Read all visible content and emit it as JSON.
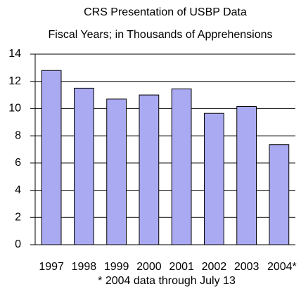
{
  "chart_data": {
    "type": "bar",
    "title": "CRS Presentation of USBP Data",
    "subtitle": "Fiscal Years; in Thousands of Apprehensions",
    "categories": [
      "1997",
      "1998",
      "1999",
      "2000",
      "2001",
      "2002",
      "2003",
      "2004*"
    ],
    "values": [
      12.8,
      11.5,
      10.7,
      11.0,
      11.45,
      9.65,
      10.15,
      7.35
    ],
    "color": "#aaaaf2",
    "ylim": [
      0,
      14
    ],
    "yticks": [
      0,
      2,
      4,
      6,
      8,
      10,
      12,
      14
    ],
    "grid": true,
    "footnote": "* 2004 data through July 13"
  }
}
